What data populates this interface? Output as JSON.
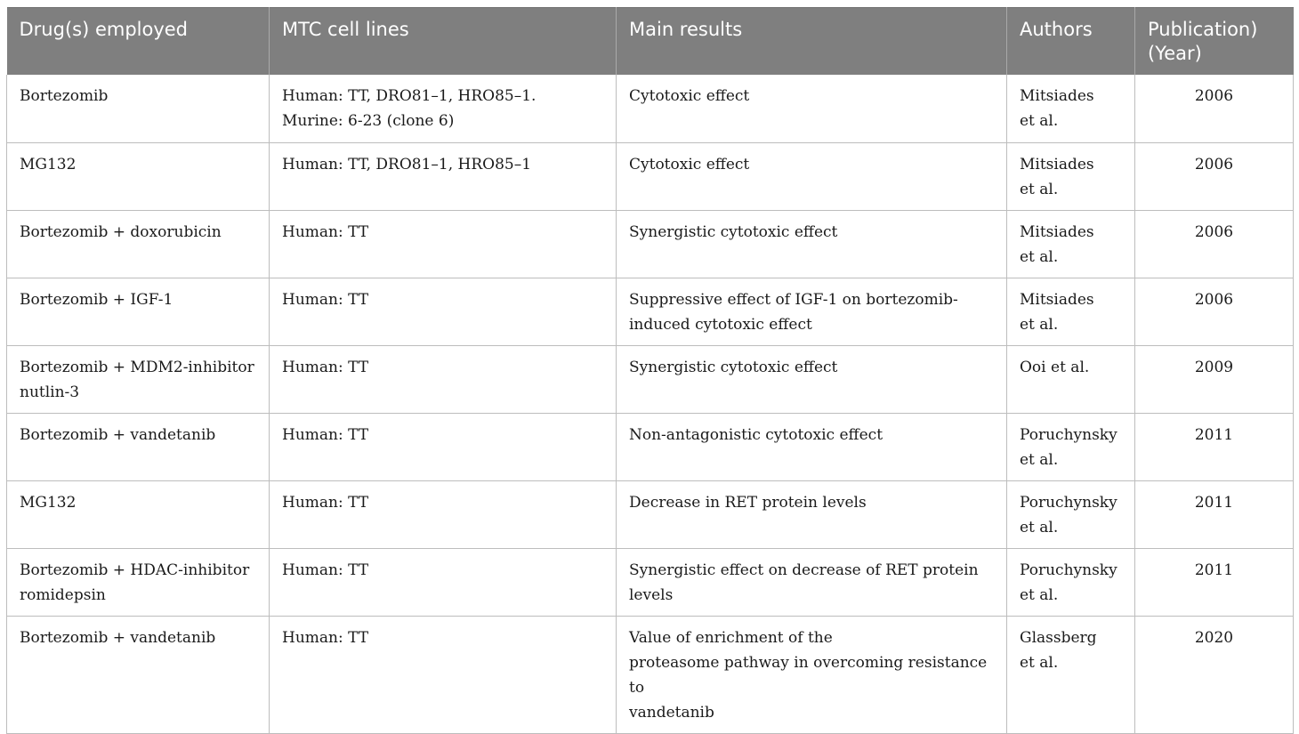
{
  "table": {
    "headers": [
      "Drug(s) employed",
      "MTC cell lines",
      "Main results",
      "Authors",
      "Publication)\n(Year)"
    ],
    "rows": [
      {
        "drug": "Bortezomib",
        "cell_lines": "Human: TT, DRO81–1, HRO85–1.\nMurine: 6-23 (clone 6)",
        "result": "Cytotoxic effect",
        "authors": "Mitsiades\net al.",
        "year": "2006"
      },
      {
        "drug": "MG132",
        "cell_lines": "Human: TT, DRO81–1, HRO85–1",
        "result": "Cytotoxic effect",
        "authors": "Mitsiades\net al.",
        "year": "2006"
      },
      {
        "drug": "Bortezomib + doxorubicin",
        "cell_lines": "Human: TT",
        "result": "Synergistic cytotoxic effect",
        "authors": "Mitsiades\net al.",
        "year": "2006"
      },
      {
        "drug": "Bortezomib + IGF-1",
        "cell_lines": "Human: TT",
        "result": "Suppressive effect of IGF-1 on bortezomib-\ninduced cytotoxic effect",
        "authors": "Mitsiades\net al.",
        "year": "2006"
      },
      {
        "drug": "Bortezomib + MDM2-inhibitor\nnutlin-3",
        "cell_lines": "Human: TT",
        "result": "Synergistic cytotoxic effect",
        "authors": "Ooi et al.",
        "year": "2009"
      },
      {
        "drug": "Bortezomib + vandetanib",
        "cell_lines": "Human: TT",
        "result": "Non-antagonistic cytotoxic effect",
        "authors": "Poruchynsky\net al.",
        "year": "2011"
      },
      {
        "drug": "MG132",
        "cell_lines": "Human: TT",
        "result": "Decrease in RET protein levels",
        "authors": "Poruchynsky\net al.",
        "year": "2011"
      },
      {
        "drug": "Bortezomib + HDAC-inhibitor\nromidepsin",
        "cell_lines": "Human: TT",
        "result": "Synergistic effect on decrease of RET protein\nlevels",
        "authors": "Poruchynsky\net al.",
        "year": "2011"
      },
      {
        "drug": "Bortezomib + vandetanib",
        "cell_lines": "Human: TT",
        "result": "Value of enrichment of the\nproteasome pathway in overcoming resistance to\nvandetanib",
        "authors": "Glassberg\net al.",
        "year": "2020"
      }
    ]
  }
}
